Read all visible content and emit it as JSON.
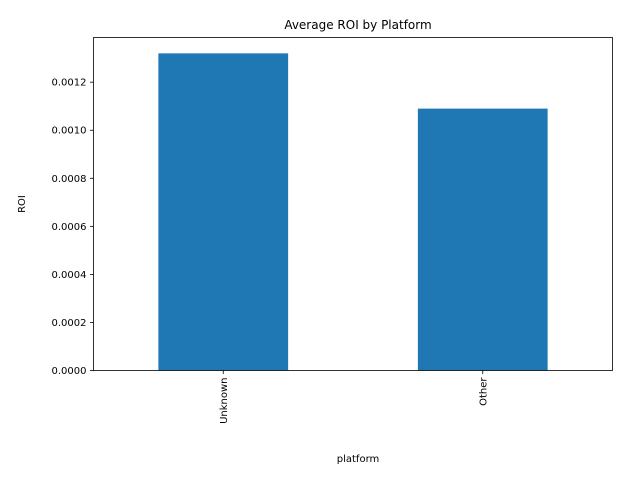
{
  "chart_data": {
    "type": "bar",
    "title": "Average ROI by Platform",
    "xlabel": "platform",
    "ylabel": "ROI",
    "categories": [
      "Unknown",
      "Other"
    ],
    "values": [
      0.00132,
      0.00109
    ],
    "ylim": [
      0,
      0.001386
    ],
    "yticks": [
      0.0,
      0.0002,
      0.0004,
      0.0006,
      0.0008,
      0.001,
      0.0012
    ],
    "ytick_labels": [
      "0.0000",
      "0.0002",
      "0.0004",
      "0.0006",
      "0.0008",
      "0.0010",
      "0.0012"
    ],
    "grid": false,
    "legend": "none",
    "bar_color": "#1f77b4"
  }
}
